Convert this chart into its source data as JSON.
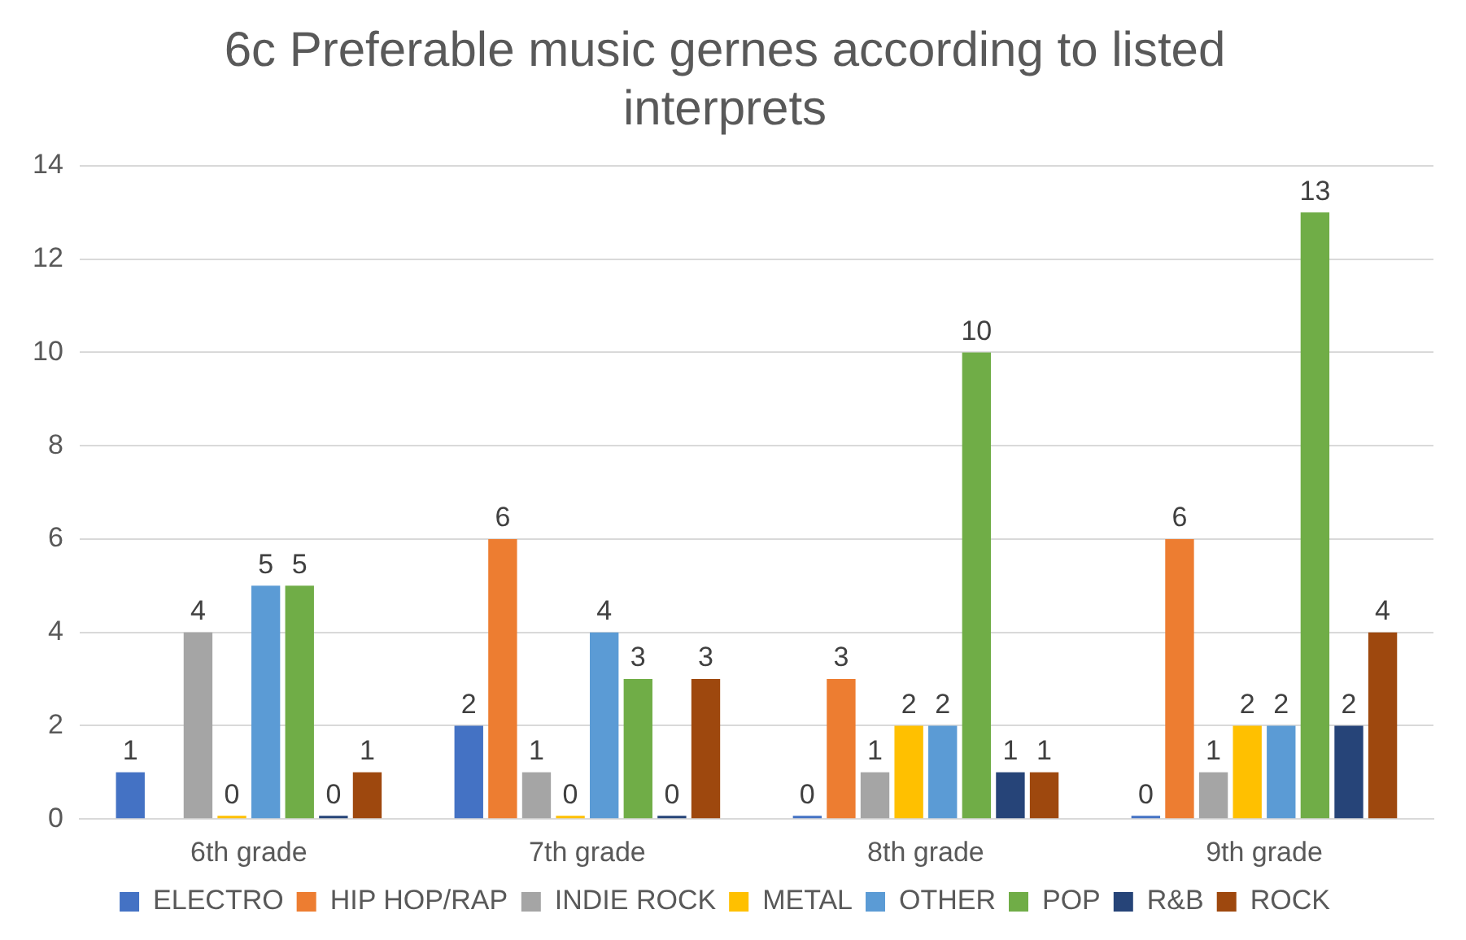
{
  "chart_data": {
    "type": "bar",
    "title": "6c Preferable music gernes according to listed interprets",
    "categories": [
      "6th grade",
      "7th grade",
      "8th grade",
      "9th grade"
    ],
    "series": [
      {
        "name": "ELECTRO",
        "color": "#4472c4",
        "values": [
          1,
          2,
          0,
          0
        ]
      },
      {
        "name": "HIP HOP/RAP",
        "color": "#ed7d31",
        "values": [
          null,
          6,
          3,
          6
        ]
      },
      {
        "name": "INDIE ROCK",
        "color": "#a5a5a5",
        "values": [
          4,
          1,
          1,
          1
        ]
      },
      {
        "name": "METAL",
        "color": "#ffc000",
        "values": [
          0,
          0,
          2,
          2
        ]
      },
      {
        "name": "OTHER",
        "color": "#5b9bd5",
        "values": [
          5,
          4,
          2,
          2
        ]
      },
      {
        "name": "POP",
        "color": "#70ad47",
        "values": [
          5,
          3,
          10,
          13
        ]
      },
      {
        "name": "R&B",
        "color": "#264478",
        "values": [
          0,
          0,
          1,
          2
        ]
      },
      {
        "name": "ROCK",
        "color": "#9e480e",
        "values": [
          1,
          3,
          1,
          4
        ]
      }
    ],
    "ylim": [
      0,
      14
    ],
    "yticks": [
      0,
      2,
      4,
      6,
      8,
      10,
      12,
      14
    ],
    "grid": "y",
    "legend": "bottom",
    "data_labels": true
  }
}
